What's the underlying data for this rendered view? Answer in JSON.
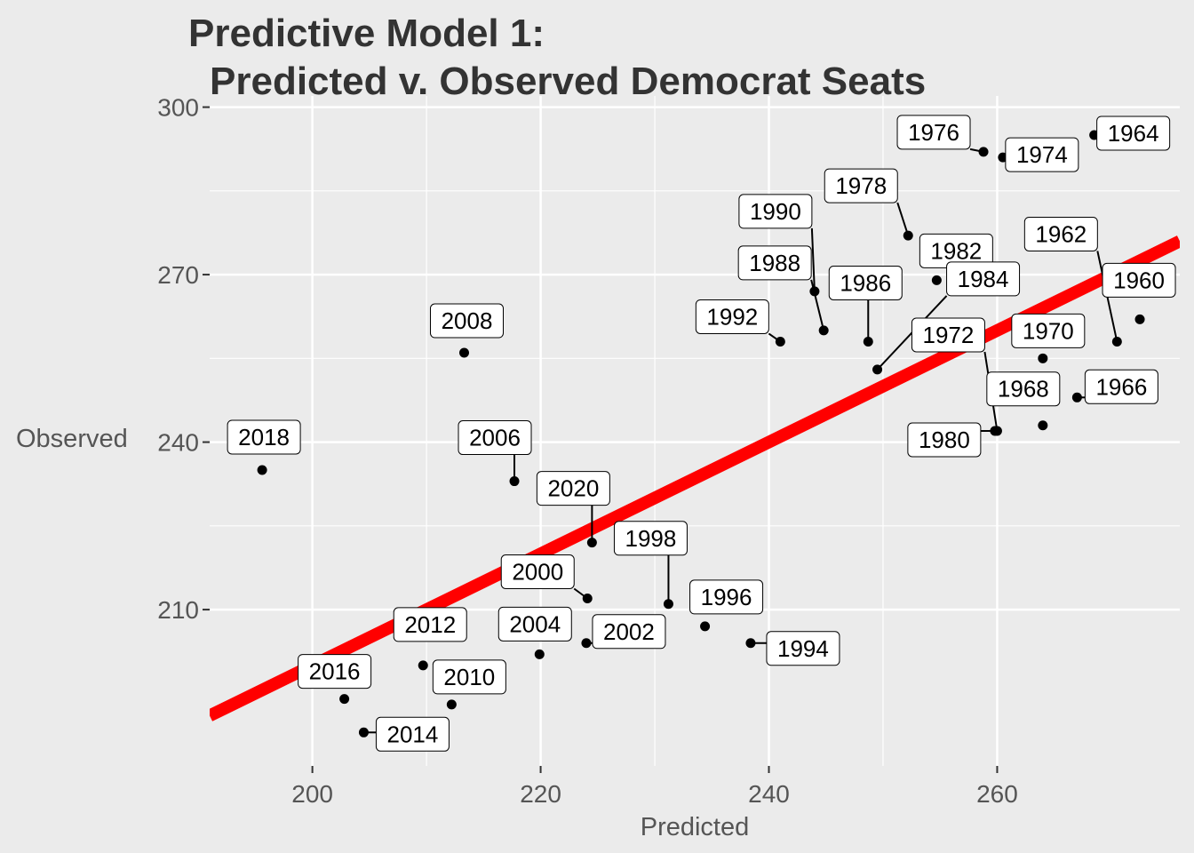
{
  "chart_data": {
    "type": "scatter",
    "title_lines": [
      "Predictive Model 1:",
      "Predicted v. Observed Democrat Seats"
    ],
    "xlabel": "Predicted",
    "ylabel": "Observed",
    "xlim": [
      191,
      276
    ],
    "ylim": [
      182,
      302
    ],
    "x_ticks": [
      200,
      220,
      240,
      260
    ],
    "y_ticks": [
      210,
      240,
      270,
      300
    ],
    "grid": true,
    "colors": {
      "background": "#ebebeb",
      "grid": "#ffffff",
      "points": "#000000",
      "fit_line": "#ff0000"
    },
    "fit_line": {
      "from": [
        191,
        191
      ],
      "to": [
        276,
        276
      ]
    },
    "points": [
      {
        "label": "1960",
        "x": 272.5,
        "y": 262.0
      },
      {
        "label": "1962",
        "x": 270.5,
        "y": 258.0
      },
      {
        "label": "1964",
        "x": 268.5,
        "y": 295.0
      },
      {
        "label": "1966",
        "x": 267.0,
        "y": 248.0
      },
      {
        "label": "1968",
        "x": 264.0,
        "y": 243.0
      },
      {
        "label": "1970",
        "x": 264.0,
        "y": 255.0
      },
      {
        "label": "1972",
        "x": 260.0,
        "y": 242.0
      },
      {
        "label": "1974",
        "x": 260.5,
        "y": 291.0
      },
      {
        "label": "1976",
        "x": 258.8,
        "y": 292.0
      },
      {
        "label": "1978",
        "x": 252.2,
        "y": 277.0
      },
      {
        "label": "1980",
        "x": 259.8,
        "y": 242.0
      },
      {
        "label": "1982",
        "x": 254.7,
        "y": 269.0
      },
      {
        "label": "1984",
        "x": 249.5,
        "y": 253.0
      },
      {
        "label": "1986",
        "x": 248.7,
        "y": 258.0
      },
      {
        "label": "1988",
        "x": 244.8,
        "y": 260.0
      },
      {
        "label": "1990",
        "x": 244.0,
        "y": 267.0
      },
      {
        "label": "1992",
        "x": 241.0,
        "y": 258.0
      },
      {
        "label": "1994",
        "x": 238.4,
        "y": 204.0
      },
      {
        "label": "1996",
        "x": 234.4,
        "y": 207.0
      },
      {
        "label": "1998",
        "x": 231.2,
        "y": 211.0
      },
      {
        "label": "2000",
        "x": 224.1,
        "y": 212.0
      },
      {
        "label": "2002",
        "x": 224.0,
        "y": 204.0
      },
      {
        "label": "2004",
        "x": 219.9,
        "y": 202.0
      },
      {
        "label": "2006",
        "x": 217.7,
        "y": 233.0
      },
      {
        "label": "2008",
        "x": 213.3,
        "y": 256.0
      },
      {
        "label": "2010",
        "x": 212.2,
        "y": 193.0
      },
      {
        "label": "2012",
        "x": 209.7,
        "y": 200.0
      },
      {
        "label": "2014",
        "x": 204.5,
        "y": 188.0
      },
      {
        "label": "2016",
        "x": 202.8,
        "y": 194.0
      },
      {
        "label": "2018",
        "x": 195.6,
        "y": 235.0
      },
      {
        "label": "2020",
        "x": 224.5,
        "y": 222.0
      }
    ]
  }
}
